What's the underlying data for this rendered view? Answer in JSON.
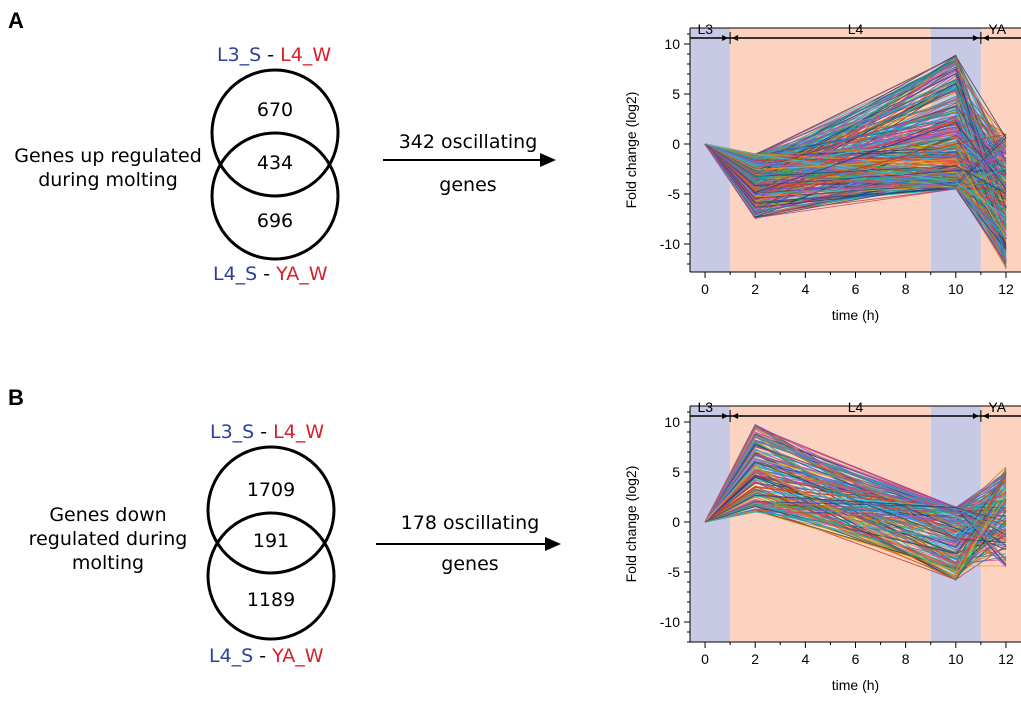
{
  "panels": [
    {
      "letter": "A",
      "venn": {
        "top_condition": {
          "left": "L3_S",
          "sep": " - ",
          "right": "L4_W"
        },
        "bottom_condition": {
          "left": "L4_S",
          "sep": " - ",
          "right": "YA_W"
        },
        "top_only": "670",
        "overlap": "434",
        "bottom_only": "696",
        "label_lines": [
          "Genes up regulated",
          "during molting"
        ]
      },
      "arrow_label_lines": [
        "342 oscillating",
        "genes"
      ]
    },
    {
      "letter": "B",
      "venn": {
        "top_condition": {
          "left": "L3_S",
          "sep": " - ",
          "right": "L4_W"
        },
        "bottom_condition": {
          "left": "L4_S",
          "sep": " - ",
          "right": "YA_W"
        },
        "top_only": "1709",
        "overlap": "191",
        "bottom_only": "1189",
        "label_lines": [
          "Genes down",
          "regulated during",
          "molting"
        ]
      },
      "arrow_label_lines": [
        "178 oscillating",
        "genes"
      ]
    }
  ],
  "colors": {
    "condition_blue": "#2e3f9a",
    "condition_red": "#d81e2a",
    "stage_lavender": "#c8c9e4",
    "stage_salmon": "#fbd3c0"
  },
  "chart_data": [
    {
      "type": "line",
      "xlabel": "time (h)",
      "ylabel": "Fold change (log2)",
      "xlim": [
        -0.6,
        12.6
      ],
      "ylim": [
        -12.8,
        11.6
      ],
      "xticks": [
        0,
        2,
        4,
        6,
        8,
        10,
        12
      ],
      "yticks": [
        10,
        5,
        0,
        -5,
        -10
      ],
      "grid": false,
      "x": [
        0,
        2,
        10,
        12
      ],
      "stages": [
        {
          "label": "L3",
          "from": -0.6,
          "to": 1
        },
        {
          "label": "L4",
          "from": 1,
          "to": 11
        },
        {
          "label": "YA",
          "from": 11,
          "to": 12.6
        }
      ],
      "shaded_bands": [
        {
          "from": -0.6,
          "to": 1,
          "color": "lavender"
        },
        {
          "from": 1,
          "to": 9,
          "color": "salmon"
        },
        {
          "from": 9,
          "to": 11,
          "color": "lavender"
        },
        {
          "from": 11,
          "to": 12.6,
          "color": "salmon"
        }
      ],
      "series_count": 342,
      "series_profile": {
        "pattern": "dip at 2 h, rise to peak at 10 h, drop at 12 h",
        "y_at_0": 0,
        "y_at_2": [
          -7.5,
          -1.0
        ],
        "y_at_10": [
          -4.5,
          9.0
        ],
        "y_at_12": [
          -12.5,
          1.0
        ]
      }
    },
    {
      "type": "line",
      "xlabel": "time (h)",
      "ylabel": "Fold change (log2)",
      "xlim": [
        -0.6,
        12.6
      ],
      "ylim": [
        -12.0,
        11.6
      ],
      "xticks": [
        0,
        2,
        4,
        6,
        8,
        10,
        12
      ],
      "yticks": [
        10,
        5,
        0,
        -5,
        -10
      ],
      "grid": false,
      "x": [
        0,
        2,
        10,
        12
      ],
      "stages": [
        {
          "label": "L3",
          "from": -0.6,
          "to": 1
        },
        {
          "label": "L4",
          "from": 1,
          "to": 11
        },
        {
          "label": "YA",
          "from": 11,
          "to": 12.6
        }
      ],
      "shaded_bands": [
        {
          "from": -0.6,
          "to": 1,
          "color": "lavender"
        },
        {
          "from": 1,
          "to": 9,
          "color": "salmon"
        },
        {
          "from": 9,
          "to": 11,
          "color": "lavender"
        },
        {
          "from": 11,
          "to": 12.6,
          "color": "salmon"
        }
      ],
      "series_count": 178,
      "series_profile": {
        "pattern": "peak at 2 h, fall to trough at 10 h, rise at 12 h",
        "y_at_0": 0,
        "y_at_2": [
          1.0,
          9.8
        ],
        "y_at_10": [
          -6.0,
          1.5
        ],
        "y_at_12": [
          -4.5,
          5.5
        ]
      }
    }
  ]
}
